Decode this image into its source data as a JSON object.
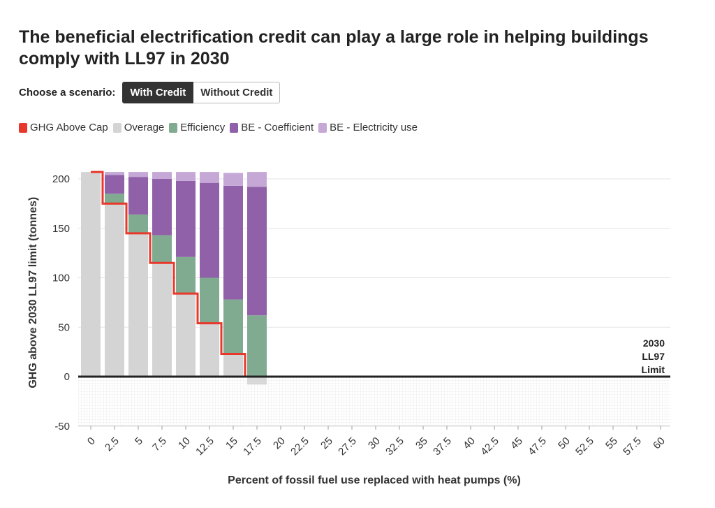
{
  "title": "The beneficial electrification credit can play a large role in helping buildings comply with LL97 in 2030",
  "scenario": {
    "label": "Choose a scenario:",
    "options": [
      "With Credit",
      "Without Credit"
    ],
    "selected": "With Credit"
  },
  "legend": [
    {
      "name": "GHG Above Cap",
      "color": "#e8382b"
    },
    {
      "name": "Overage",
      "color": "#d4d4d4"
    },
    {
      "name": "Efficiency",
      "color": "#80ab91"
    },
    {
      "name": "BE - Coefficient",
      "color": "#9061a8"
    },
    {
      "name": "BE - Electricity use",
      "color": "#c5a8d6"
    }
  ],
  "chart_data": {
    "type": "bar",
    "stacked": true,
    "xlabel": "Percent of fossil fuel use replaced with heat pumps (%)",
    "ylabel": "GHG above 2030 LL97 limit (tonnes)",
    "ylim": [
      -50,
      220
    ],
    "yticks": [
      200,
      150,
      100,
      50,
      0,
      -50
    ],
    "categories": [
      "0",
      "2.5",
      "5",
      "7.5",
      "10",
      "12.5",
      "15",
      "17.5",
      "20",
      "22.5",
      "25",
      "27.5",
      "30",
      "32.5",
      "35",
      "37.5",
      "40",
      "42.5",
      "45",
      "47.5",
      "50",
      "52.5",
      "55",
      "57.5",
      "60"
    ],
    "series": [
      {
        "name": "Overage",
        "values": [
          207,
          175,
          145,
          115,
          84,
          54,
          23,
          -8,
          null,
          null,
          null,
          null,
          null,
          null,
          null,
          null,
          null,
          null,
          null,
          null,
          null,
          null,
          null,
          null,
          null
        ]
      },
      {
        "name": "Efficiency",
        "values": [
          0,
          10,
          19,
          28,
          37,
          46,
          55,
          62,
          null,
          null,
          null,
          null,
          null,
          null,
          null,
          null,
          null,
          null,
          null,
          null,
          null,
          null,
          null,
          null,
          null
        ]
      },
      {
        "name": "BE - Coefficient",
        "values": [
          0,
          19,
          38,
          57,
          77,
          96,
          115,
          130,
          null,
          null,
          null,
          null,
          null,
          null,
          null,
          null,
          null,
          null,
          null,
          null,
          null,
          null,
          null,
          null,
          null
        ]
      },
      {
        "name": "BE - Electricity use",
        "values": [
          0,
          3,
          5,
          7,
          9,
          11,
          13,
          15,
          null,
          null,
          null,
          null,
          null,
          null,
          null,
          null,
          null,
          null,
          null,
          null,
          null,
          null,
          null,
          null,
          null
        ]
      },
      {
        "name": "GHG Above Cap",
        "type": "step",
        "values": [
          207,
          175,
          145,
          115,
          84,
          54,
          23,
          0,
          null,
          null,
          null,
          null,
          null,
          null,
          null,
          null,
          null,
          null,
          null,
          null,
          null,
          null,
          null,
          null,
          null
        ]
      }
    ],
    "annotation": {
      "text": [
        "2030",
        "LL97",
        "Limit"
      ],
      "y": 0
    }
  }
}
